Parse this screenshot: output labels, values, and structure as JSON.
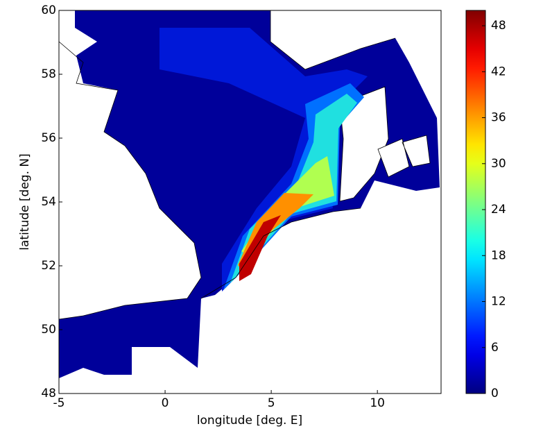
{
  "chart_data": {
    "type": "contour",
    "xlabel": "longitude [deg. E]",
    "ylabel": "latitude [deg. N]",
    "xlim": [
      -5,
      13
    ],
    "xticks": [
      -5,
      0,
      5,
      10
    ],
    "ylim": [
      48,
      60
    ],
    "yticks": [
      48,
      50,
      52,
      54,
      56,
      58,
      60
    ],
    "colormap": "jet",
    "clim": [
      0,
      50
    ],
    "cticks": [
      0,
      6,
      12,
      18,
      24,
      30,
      36,
      42,
      48
    ]
  }
}
